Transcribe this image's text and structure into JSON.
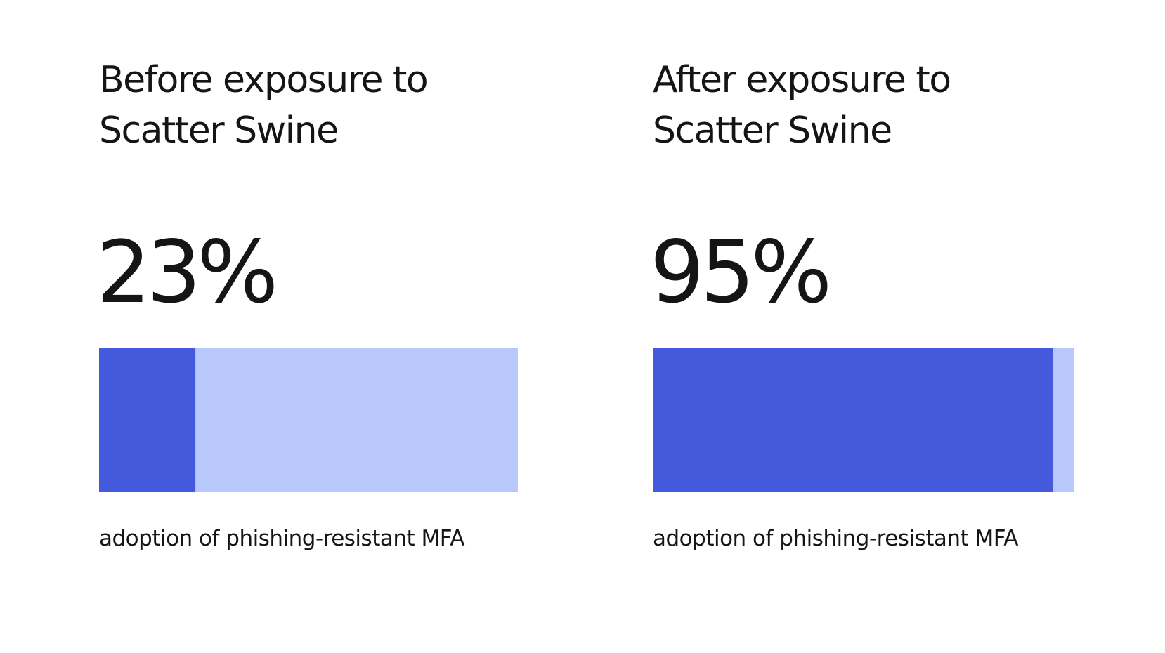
{
  "chart_data": [
    {
      "type": "progress",
      "title": "Before exposure to Scatter Swine",
      "values": [
        23
      ],
      "value_labels": [
        "23%"
      ],
      "xlim": [
        0,
        100
      ],
      "color": "#4459db",
      "track_color": "#b9c8fb",
      "caption": "adoption of phishing-resistant MFA"
    },
    {
      "type": "progress",
      "title": "After exposure to Scatter Swine",
      "values": [
        95
      ],
      "value_labels": [
        "95%"
      ],
      "xlim": [
        0,
        100
      ],
      "color": "#4459db",
      "track_color": "#b9c8fb",
      "caption": "adoption of phishing-resistant MFA"
    }
  ]
}
